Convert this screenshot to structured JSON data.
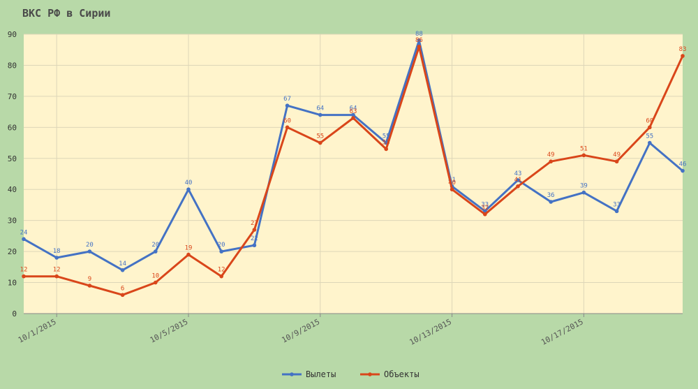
{
  "chart_data": {
    "type": "line",
    "title": "ВКС РФ в Сирии",
    "xlabel": "",
    "ylabel": "",
    "ylim": [
      0,
      90
    ],
    "yticks": [
      0,
      10,
      20,
      30,
      40,
      50,
      60,
      70,
      80,
      90
    ],
    "x": [
      "9/30/2015",
      "10/1/2015",
      "10/2/2015",
      "10/3/2015",
      "10/4/2015",
      "10/5/2015",
      "10/6/2015",
      "10/7/2015",
      "10/8/2015",
      "10/9/2015",
      "10/10/2015",
      "10/11/2015",
      "10/12/2015",
      "10/13/2015",
      "10/14/2015",
      "10/15/2015",
      "10/16/2015",
      "10/17/2015",
      "10/18/2015",
      "10/19/2015",
      "10/20/2015"
    ],
    "x_tick_labels": [
      {
        "index": 1,
        "label": "10/1/2015"
      },
      {
        "index": 5,
        "label": "10/5/2015"
      },
      {
        "index": 9,
        "label": "10/9/2015"
      },
      {
        "index": 13,
        "label": "10/13/2015"
      },
      {
        "index": 17,
        "label": "10/17/2015"
      }
    ],
    "grid": true,
    "legend_position": "bottom",
    "series": [
      {
        "name": "Вылеты",
        "color": "#4472c4",
        "values": [
          24,
          18,
          20,
          14,
          20,
          40,
          20,
          22,
          67,
          64,
          64,
          55,
          88,
          41,
          33,
          43,
          36,
          39,
          33,
          55,
          46
        ]
      },
      {
        "name": "Объекты",
        "color": "#d9461a",
        "values": [
          12,
          12,
          9,
          6,
          10,
          19,
          12,
          27,
          60,
          55,
          63,
          53,
          86,
          40,
          32,
          41,
          49,
          51,
          49,
          60,
          83
        ]
      }
    ]
  }
}
